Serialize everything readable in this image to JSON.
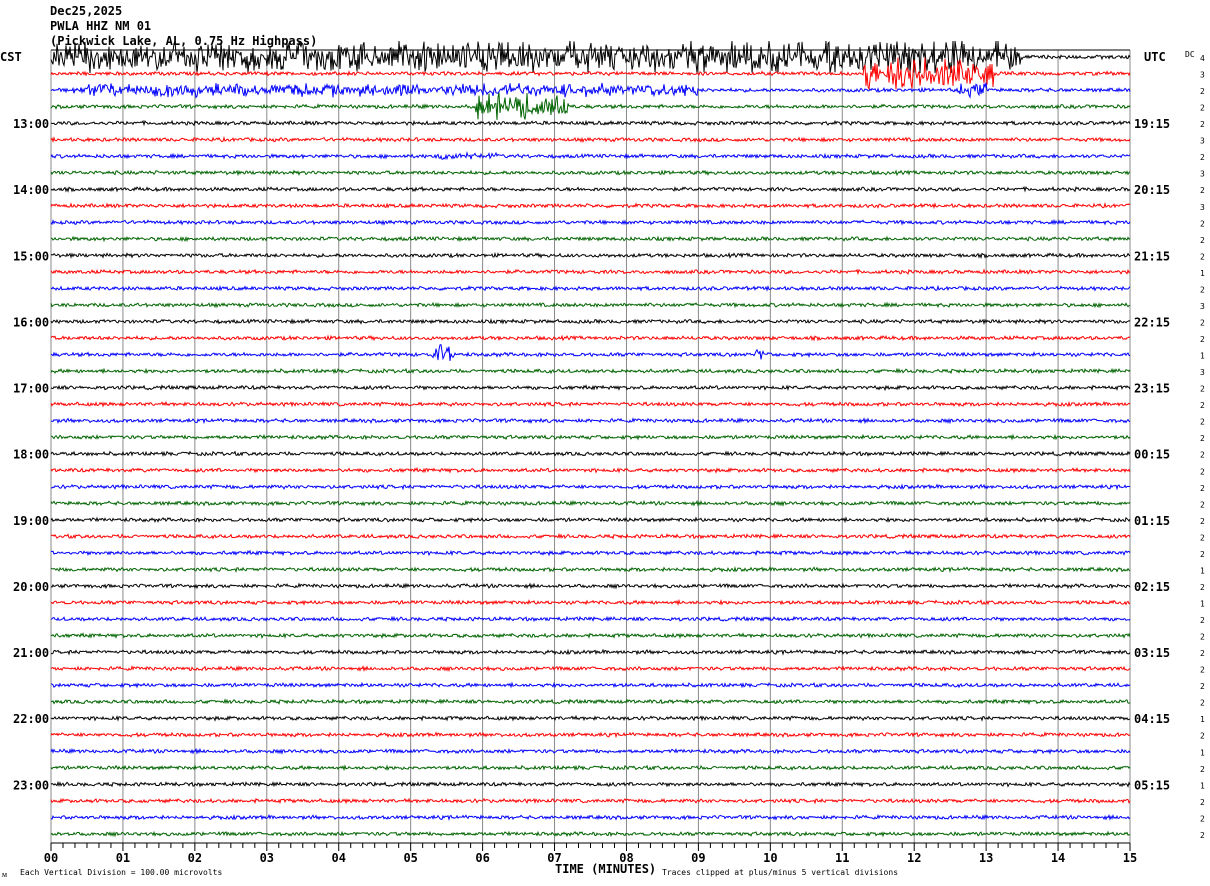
{
  "header": {
    "date": "Dec25,2025",
    "station": "PWLA HHZ NM 01",
    "location": "(Pickwick Lake, AL, 0.75 Hz Highpass)"
  },
  "left_zone_label": "CST",
  "right_zone_label": "UTC",
  "dc_label": "DC",
  "footer": {
    "scale_note": "Each Vertical Division =  100.00 microvolts",
    "xlabel": "TIME (MINUTES)",
    "clip_note": "Traces clipped at plus/minus 5 vertical divisions",
    "corner_mark": "ᴍ"
  },
  "chart_data": {
    "type": "line",
    "title": "PWLA HHZ NM 01",
    "xlabel": "TIME (MINUTES)",
    "xlim": [
      0,
      15
    ],
    "x_tick_labels": [
      "00",
      "01",
      "02",
      "03",
      "04",
      "05",
      "06",
      "07",
      "08",
      "09",
      "10",
      "11",
      "12",
      "13",
      "14",
      "15"
    ],
    "grid": true,
    "trace_colors": [
      "#000000",
      "#ff0000",
      "#0000ff",
      "#006400"
    ],
    "rows_count": 48,
    "left_time_labels": [
      {
        "row": 4,
        "text": "13:00"
      },
      {
        "row": 8,
        "text": "14:00"
      },
      {
        "row": 12,
        "text": "15:00"
      },
      {
        "row": 16,
        "text": "16:00"
      },
      {
        "row": 20,
        "text": "17:00"
      },
      {
        "row": 24,
        "text": "18:00"
      },
      {
        "row": 28,
        "text": "19:00"
      },
      {
        "row": 32,
        "text": "20:00"
      },
      {
        "row": 36,
        "text": "21:00"
      },
      {
        "row": 40,
        "text": "22:00"
      },
      {
        "row": 44,
        "text": "23:00"
      }
    ],
    "right_time_labels": [
      {
        "row": 4,
        "text": "19:15"
      },
      {
        "row": 8,
        "text": "20:15"
      },
      {
        "row": 12,
        "text": "21:15"
      },
      {
        "row": 16,
        "text": "22:15"
      },
      {
        "row": 20,
        "text": "23:15"
      },
      {
        "row": 24,
        "text": "00:15"
      },
      {
        "row": 28,
        "text": "01:15"
      },
      {
        "row": 32,
        "text": "02:15"
      },
      {
        "row": 36,
        "text": "03:15"
      },
      {
        "row": 40,
        "text": "04:15"
      },
      {
        "row": 44,
        "text": "05:15"
      }
    ],
    "dc_values": [
      4,
      3,
      2,
      2,
      2,
      3,
      2,
      3,
      2,
      3,
      2,
      2,
      2,
      1,
      2,
      3,
      2,
      2,
      1,
      3,
      2,
      2,
      2,
      2,
      2,
      2,
      2,
      2,
      2,
      2,
      2,
      1,
      2,
      1,
      2,
      2,
      2,
      2,
      2,
      2,
      1,
      2,
      1,
      2,
      1,
      2,
      2,
      2
    ],
    "clip_divisions": 5,
    "units_per_division": "100.00 microvolts",
    "events": [
      {
        "row": 0,
        "start_min": 0,
        "end_min": 13.5,
        "amplitude_div": 5
      },
      {
        "row": 1,
        "start_min": 11.3,
        "end_min": 13.1,
        "amplitude_div": 5
      },
      {
        "row": 2,
        "start_min": 0.3,
        "end_min": 9.0,
        "amplitude_div": 2
      },
      {
        "row": 2,
        "start_min": 12.6,
        "end_min": 13.0,
        "amplitude_div": 2
      },
      {
        "row": 3,
        "start_min": 5.9,
        "end_min": 7.2,
        "amplitude_div": 4
      },
      {
        "row": 6,
        "start_min": 5.3,
        "end_min": 6.2,
        "amplitude_div": 1
      },
      {
        "row": 18,
        "start_min": 5.3,
        "end_min": 5.6,
        "amplitude_div": 3
      },
      {
        "row": 18,
        "start_min": 9.8,
        "end_min": 9.9,
        "amplitude_div": 2
      },
      {
        "row": 20,
        "start_min": 3.5,
        "end_min": 3.55,
        "amplitude_div": 1.5
      },
      {
        "row": 21,
        "start_min": 5.5,
        "end_min": 5.55,
        "amplitude_div": 1
      }
    ]
  }
}
